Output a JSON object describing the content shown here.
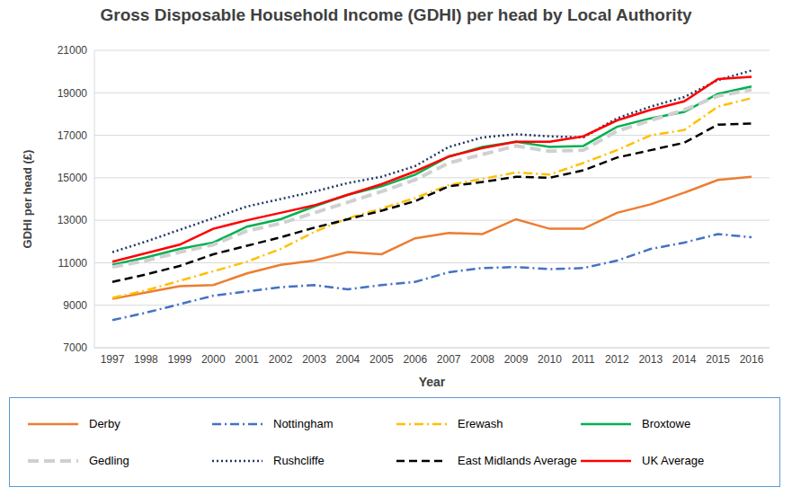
{
  "chart_data": {
    "type": "line",
    "title": "Gross Disposable Household Income (GDHI) per head by Local Authority",
    "x_label": "Year",
    "y_label": "GDHI per head (£)",
    "categories": [
      "1997",
      "1998",
      "1999",
      "2000",
      "2001",
      "2002",
      "2003",
      "2004",
      "2005",
      "2006",
      "2007",
      "2008",
      "2009",
      "2010",
      "2011",
      "2012",
      "2013",
      "2014",
      "2015",
      "2016"
    ],
    "ylim": [
      7000,
      21000
    ],
    "yticks": [
      7000,
      9000,
      11000,
      13000,
      15000,
      17000,
      19000,
      21000
    ],
    "grid": true,
    "legend": "bottom",
    "series": [
      {
        "name": "Derby",
        "color": "#ed7d31",
        "line_style": "solid",
        "values": [
          9300,
          9600,
          9900,
          9950,
          10500,
          10900,
          11100,
          11500,
          11400,
          12150,
          12400,
          12350,
          13050,
          12600,
          12600,
          13350,
          13750,
          14300,
          14900,
          15050
        ]
      },
      {
        "name": "Nottingham",
        "color": "#4472c4",
        "line_style": "dash_dot",
        "values": [
          8300,
          8650,
          9050,
          9450,
          9650,
          9850,
          9950,
          9750,
          9950,
          10100,
          10550,
          10750,
          10800,
          10700,
          10750,
          11100,
          11650,
          11950,
          12350,
          12200
        ]
      },
      {
        "name": "Erewash",
        "color": "#ffc000",
        "line_style": "dash_dot",
        "values": [
          9350,
          9700,
          10150,
          10600,
          11050,
          11650,
          12450,
          13100,
          13550,
          14050,
          14650,
          14950,
          15250,
          15150,
          15700,
          16300,
          17000,
          17250,
          18350,
          18750
        ]
      },
      {
        "name": "Broxtowe",
        "color": "#00b050",
        "line_style": "solid",
        "values": [
          10900,
          11250,
          11650,
          11950,
          12700,
          13050,
          13650,
          14200,
          14600,
          15150,
          16000,
          16450,
          16700,
          16450,
          16500,
          17400,
          17800,
          18100,
          18950,
          19300
        ]
      },
      {
        "name": "Gedling",
        "color": "#d0d0d0",
        "line_style": "long_dash",
        "values": [
          10800,
          11100,
          11500,
          11850,
          12500,
          12850,
          13350,
          13850,
          14350,
          14900,
          15700,
          16100,
          16500,
          16250,
          16300,
          17200,
          17700,
          18200,
          18850,
          19150
        ]
      },
      {
        "name": "Rushcliffe",
        "color": "#203864",
        "line_style": "dotted",
        "values": [
          11500,
          12000,
          12550,
          13100,
          13650,
          14000,
          14350,
          14750,
          15050,
          15550,
          16450,
          16900,
          17050,
          16950,
          16900,
          17800,
          18350,
          18800,
          19600,
          20050
        ]
      },
      {
        "name": "East Midlands Average",
        "color": "#000000",
        "line_style": "dashed",
        "values": [
          10100,
          10450,
          10850,
          11400,
          11800,
          12200,
          12650,
          13050,
          13450,
          13900,
          14600,
          14800,
          15050,
          15000,
          15350,
          15950,
          16300,
          16650,
          17500,
          17550
        ]
      },
      {
        "name": "UK Average",
        "color": "#ff0000",
        "line_style": "solid",
        "values": [
          11050,
          11450,
          11850,
          12600,
          13000,
          13350,
          13700,
          14200,
          14700,
          15300,
          16000,
          16400,
          16700,
          16700,
          16950,
          17700,
          18200,
          18600,
          19650,
          19750
        ]
      }
    ]
  }
}
